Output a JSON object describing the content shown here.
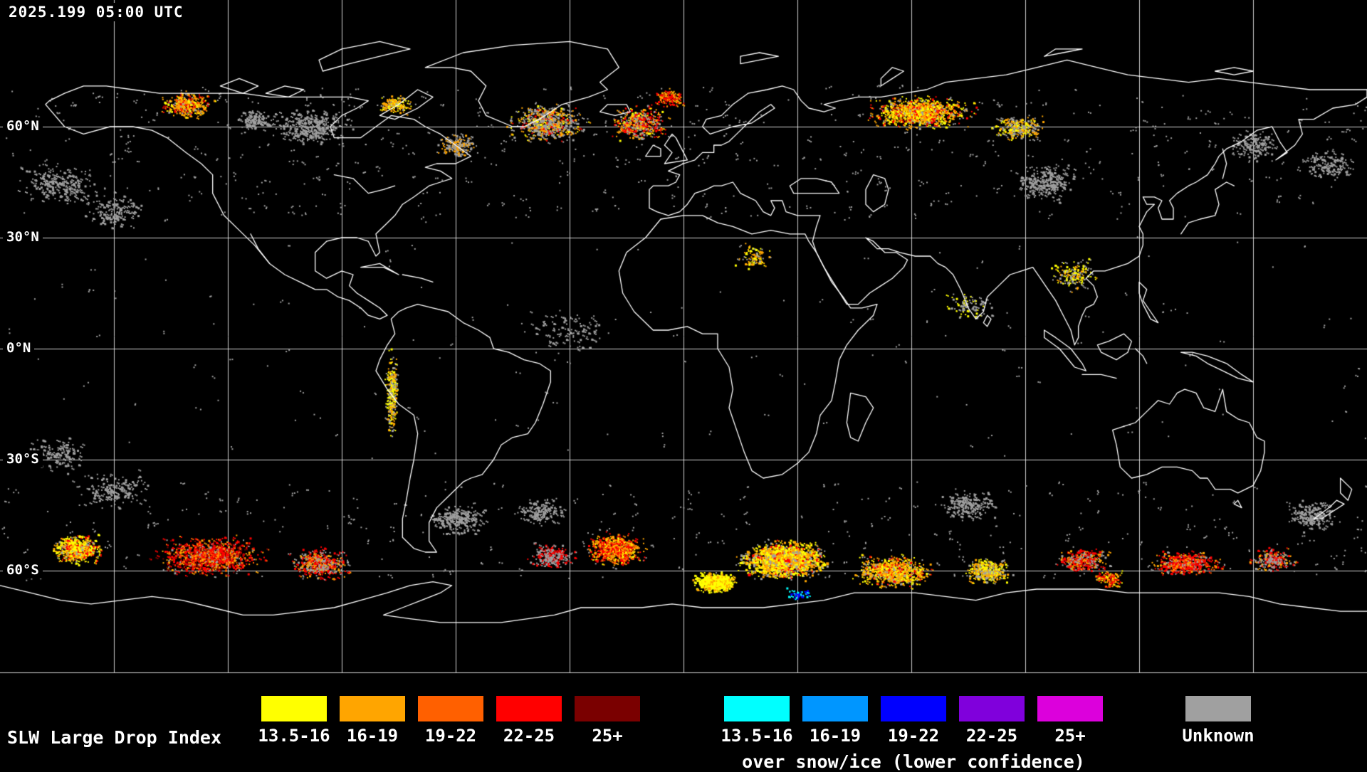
{
  "header": {
    "timestamp": "2025.199 05:00 UTC"
  },
  "map": {
    "lat_labels": [
      "60°N",
      "30°N",
      "0°N",
      "30°S",
      "60°S"
    ]
  },
  "legend": {
    "title": "SLW Large Drop Index",
    "main": {
      "items": [
        {
          "label": "13.5-16",
          "color": "#FFFF00"
        },
        {
          "label": "16-19",
          "color": "#FFA500"
        },
        {
          "label": "19-22",
          "color": "#FF6000"
        },
        {
          "label": "22-25",
          "color": "#FF0000"
        },
        {
          "label": "25+",
          "color": "#7A0000"
        }
      ]
    },
    "snow": {
      "caption": "over snow/ice (lower confidence)",
      "items": [
        {
          "label": "13.5-16",
          "color": "#00FFFF"
        },
        {
          "label": "16-19",
          "color": "#0096FF"
        },
        {
          "label": "19-22",
          "color": "#0000FF"
        },
        {
          "label": "22-25",
          "color": "#8000DC"
        },
        {
          "label": "25+",
          "color": "#DC00DC"
        }
      ]
    },
    "unknown": {
      "label": "Unknown",
      "color": "#A0A0A0"
    }
  }
}
